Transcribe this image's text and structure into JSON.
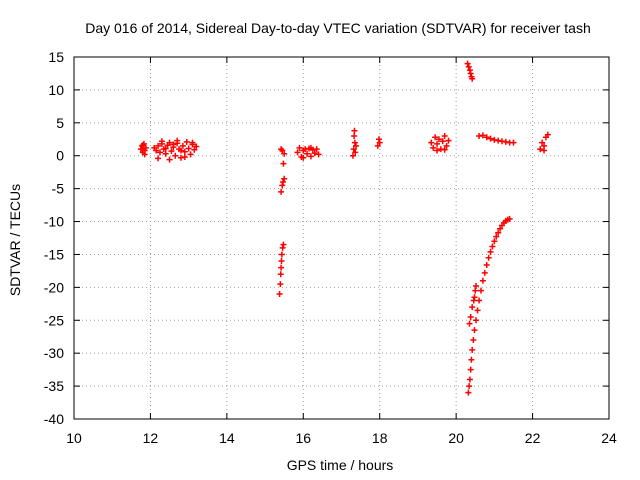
{
  "chart_data": {
    "type": "scatter",
    "title": "Day 016 of 2014, Sidereal Day-to-day VTEC variation (SDTVAR) for receiver tash",
    "xlabel": "GPS time / hours",
    "ylabel": "SDTVAR / TECUs",
    "xlim": [
      10,
      24
    ],
    "ylim": [
      -40,
      15
    ],
    "xticks": [
      10,
      12,
      14,
      16,
      18,
      20,
      22,
      24
    ],
    "yticks": [
      -40,
      -35,
      -30,
      -25,
      -20,
      -15,
      -10,
      -5,
      0,
      5,
      10,
      15
    ],
    "grid": true,
    "marker_color": "#ff0000",
    "series": [
      {
        "name": "sdtvar",
        "points": [
          [
            11.75,
            1.0
          ],
          [
            11.78,
            1.5
          ],
          [
            11.8,
            0.5
          ],
          [
            11.83,
            1.8
          ],
          [
            11.85,
            0.8
          ],
          [
            11.88,
            1.2
          ],
          [
            11.8,
            1.6
          ],
          [
            11.85,
            0.2
          ],
          [
            12.1,
            1.2
          ],
          [
            12.15,
            0.8
          ],
          [
            12.2,
            1.5
          ],
          [
            12.25,
            0.5
          ],
          [
            12.3,
            1.8
          ],
          [
            12.35,
            1.0
          ],
          [
            12.4,
            0.3
          ],
          [
            12.45,
            1.6
          ],
          [
            12.5,
            2.0
          ],
          [
            12.55,
            0.7
          ],
          [
            12.6,
            1.3
          ],
          [
            12.65,
            0.0
          ],
          [
            12.7,
            1.9
          ],
          [
            12.75,
            1.0
          ],
          [
            12.8,
            -0.3
          ],
          [
            12.85,
            1.5
          ],
          [
            12.9,
            0.6
          ],
          [
            12.95,
            2.1
          ],
          [
            13.0,
            1.1
          ],
          [
            13.05,
            0.2
          ],
          [
            13.1,
            1.7
          ],
          [
            13.15,
            0.9
          ],
          [
            13.2,
            1.4
          ],
          [
            12.2,
            -0.4
          ],
          [
            12.3,
            2.2
          ],
          [
            12.5,
            -0.6
          ],
          [
            12.7,
            2.3
          ],
          [
            12.9,
            -0.2
          ],
          [
            13.1,
            2.0
          ],
          [
            12.4,
            1.1
          ],
          [
            12.6,
            1.7
          ],
          [
            12.8,
            0.8
          ],
          [
            15.42,
            -5.5
          ],
          [
            15.45,
            -4.5
          ],
          [
            15.47,
            -4.0
          ],
          [
            15.5,
            -3.5
          ],
          [
            15.48,
            -1.2
          ],
          [
            15.45,
            0.8
          ],
          [
            15.5,
            0.3
          ],
          [
            15.42,
            1.0
          ],
          [
            15.38,
            -21.0
          ],
          [
            15.4,
            -19.5
          ],
          [
            15.41,
            -18.0
          ],
          [
            15.42,
            -17.0
          ],
          [
            15.43,
            -16.0
          ],
          [
            15.44,
            -15.0
          ],
          [
            15.46,
            -14.0
          ],
          [
            15.48,
            -13.5
          ],
          [
            15.85,
            0.5
          ],
          [
            15.9,
            1.2
          ],
          [
            15.95,
            -0.2
          ],
          [
            16.0,
            0.8
          ],
          [
            16.05,
            1.0
          ],
          [
            16.1,
            0.3
          ],
          [
            16.15,
            1.1
          ],
          [
            16.2,
            -0.1
          ],
          [
            16.25,
            0.9
          ],
          [
            16.3,
            0.4
          ],
          [
            16.35,
            1.0
          ],
          [
            16.4,
            0.2
          ],
          [
            16.0,
            -0.3
          ],
          [
            16.2,
            1.2
          ],
          [
            17.3,
            0.0
          ],
          [
            17.32,
            1.0
          ],
          [
            17.35,
            2.0
          ],
          [
            17.33,
            3.0
          ],
          [
            17.34,
            3.8
          ],
          [
            17.36,
            0.5
          ],
          [
            17.38,
            1.5
          ],
          [
            17.95,
            1.5
          ],
          [
            17.98,
            2.5
          ],
          [
            18.0,
            2.0
          ],
          [
            19.35,
            2.0
          ],
          [
            19.4,
            1.2
          ],
          [
            19.45,
            2.8
          ],
          [
            19.5,
            1.8
          ],
          [
            19.55,
            2.5
          ],
          [
            19.6,
            1.0
          ],
          [
            19.65,
            2.2
          ],
          [
            19.7,
            3.0
          ],
          [
            19.75,
            1.5
          ],
          [
            19.8,
            2.3
          ],
          [
            19.5,
            0.8
          ],
          [
            19.7,
            0.9
          ],
          [
            20.6,
            3.0
          ],
          [
            20.7,
            3.1
          ],
          [
            20.8,
            2.8
          ],
          [
            20.9,
            2.6
          ],
          [
            21.0,
            2.4
          ],
          [
            21.1,
            2.3
          ],
          [
            21.2,
            2.2
          ],
          [
            21.3,
            2.1
          ],
          [
            21.4,
            2.0
          ],
          [
            21.5,
            2.0
          ],
          [
            20.3,
            14.0
          ],
          [
            20.33,
            13.5
          ],
          [
            20.36,
            13.0
          ],
          [
            20.38,
            12.5
          ],
          [
            20.4,
            12.0
          ],
          [
            20.42,
            11.7
          ],
          [
            22.2,
            1.0
          ],
          [
            22.25,
            2.0
          ],
          [
            22.3,
            1.5
          ],
          [
            22.35,
            2.8
          ],
          [
            22.4,
            3.2
          ],
          [
            22.3,
            0.8
          ],
          [
            20.32,
            -36.0
          ],
          [
            20.34,
            -35.0
          ],
          [
            20.36,
            -34.0
          ],
          [
            20.38,
            -32.5
          ],
          [
            20.4,
            -31.0
          ],
          [
            20.42,
            -29.5
          ],
          [
            20.45,
            -28.0
          ],
          [
            20.48,
            -26.5
          ],
          [
            20.52,
            -25.0
          ],
          [
            20.56,
            -23.5
          ],
          [
            20.6,
            -22.0
          ],
          [
            20.65,
            -20.5
          ],
          [
            20.7,
            -19.0
          ],
          [
            20.75,
            -17.8
          ],
          [
            20.8,
            -16.6
          ],
          [
            20.85,
            -15.5
          ],
          [
            20.9,
            -14.6
          ],
          [
            20.95,
            -13.8
          ],
          [
            21.0,
            -13.0
          ],
          [
            21.05,
            -12.3
          ],
          [
            21.1,
            -11.7
          ],
          [
            21.15,
            -11.1
          ],
          [
            21.2,
            -10.6
          ],
          [
            21.25,
            -10.2
          ],
          [
            21.3,
            -9.9
          ],
          [
            21.35,
            -9.7
          ],
          [
            21.4,
            -9.6
          ],
          [
            20.35,
            -25.5
          ],
          [
            20.38,
            -24.5
          ],
          [
            20.42,
            -23.0
          ],
          [
            20.46,
            -22.0
          ],
          [
            20.5,
            -20.5
          ],
          [
            20.52,
            -19.8
          ],
          [
            20.48,
            -21.5
          ]
        ]
      }
    ]
  }
}
